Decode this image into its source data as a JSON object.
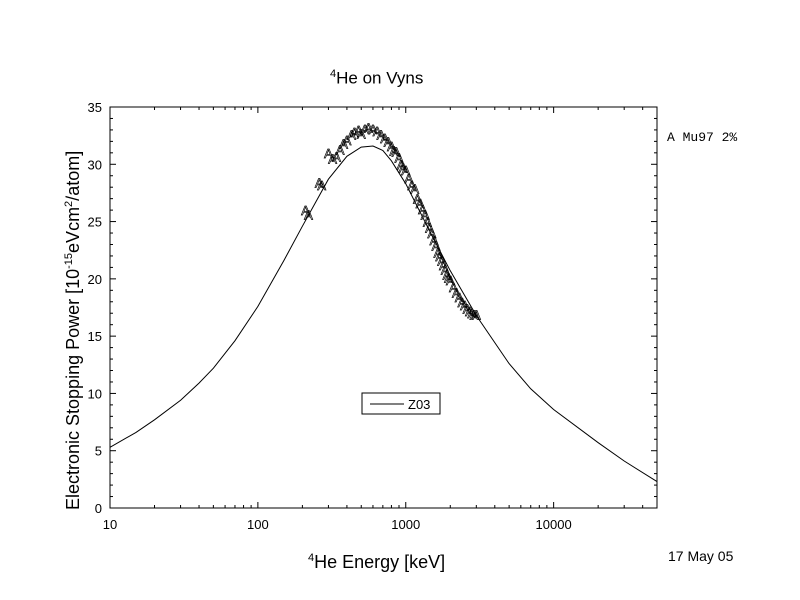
{
  "chart_data": {
    "type": "scatter",
    "title_sup": "4",
    "title": "He on Vyns",
    "xlabel_sup": "4",
    "xlabel": "He Energy [keV]",
    "ylabel_a": "Electronic Stopping Power [10",
    "ylabel_sup1": "-15",
    "ylabel_b": "eVcm",
    "ylabel_sup2": "2",
    "ylabel_c": "/atom]",
    "xscale": "log",
    "xlim": [
      10,
      50000
    ],
    "ylim": [
      0,
      35
    ],
    "x_ticks": [
      10,
      100,
      1000,
      10000
    ],
    "x_tick_labels": [
      "10",
      "100",
      "1000",
      "10000"
    ],
    "y_ticks": [
      0,
      5,
      10,
      15,
      20,
      25,
      30,
      35
    ],
    "y_tick_labels": [
      "0",
      "5",
      "10",
      "15",
      "20",
      "25",
      "30",
      "35"
    ],
    "legend": {
      "label": "Z03",
      "position": "center-bottom"
    },
    "series_note": "A Mu97 2%",
    "date": "17 May 05",
    "series": [
      {
        "name": "Z03",
        "style": "line",
        "x": [
          10,
          15,
          20,
          30,
          40,
          50,
          70,
          100,
          150,
          200,
          300,
          400,
          500,
          600,
          700,
          800,
          1000,
          1500,
          2000,
          3000,
          5000,
          7000,
          10000,
          20000,
          30000,
          50000
        ],
        "y": [
          5.3,
          6.6,
          7.7,
          9.4,
          10.9,
          12.2,
          14.6,
          17.6,
          21.6,
          24.6,
          28.7,
          30.7,
          31.5,
          31.6,
          31.2,
          30.3,
          28.3,
          23.8,
          20.7,
          16.8,
          12.6,
          10.4,
          8.6,
          5.7,
          4.1,
          2.3
        ]
      },
      {
        "name": "Mu97",
        "marker": "A",
        "style": "markers",
        "x": [
          210,
          220,
          260,
          270,
          300,
          320,
          340,
          360,
          380,
          400,
          430,
          450,
          480,
          500,
          530,
          560,
          600,
          640,
          680,
          720,
          760,
          800,
          830,
          860,
          900,
          930,
          960,
          1000,
          1050,
          1100,
          1150,
          1200,
          1250,
          1300,
          1350,
          1400,
          1450,
          1500,
          1550,
          1600,
          1650,
          1700,
          1750,
          1800,
          1850,
          1900,
          1950,
          2000,
          2100,
          2200,
          2300,
          2400,
          2500,
          2600,
          2700,
          2800,
          2900,
          3000
        ],
        "y": [
          26.0,
          25.6,
          28.4,
          28.2,
          31.0,
          30.5,
          30.7,
          31.3,
          31.8,
          32.1,
          32.6,
          32.8,
          33.0,
          32.7,
          33.1,
          33.2,
          33.1,
          32.9,
          32.6,
          32.3,
          32.0,
          31.6,
          31.2,
          31.1,
          30.6,
          30.0,
          29.7,
          29.5,
          28.8,
          28.2,
          27.9,
          27.0,
          26.6,
          26.1,
          25.6,
          25.0,
          24.5,
          24.0,
          23.4,
          22.9,
          22.3,
          22.0,
          21.6,
          21.2,
          20.8,
          20.4,
          20.1,
          19.9,
          19.3,
          18.8,
          18.4,
          18.0,
          17.7,
          17.4,
          17.2,
          17.0,
          16.9,
          16.9
        ]
      }
    ]
  }
}
